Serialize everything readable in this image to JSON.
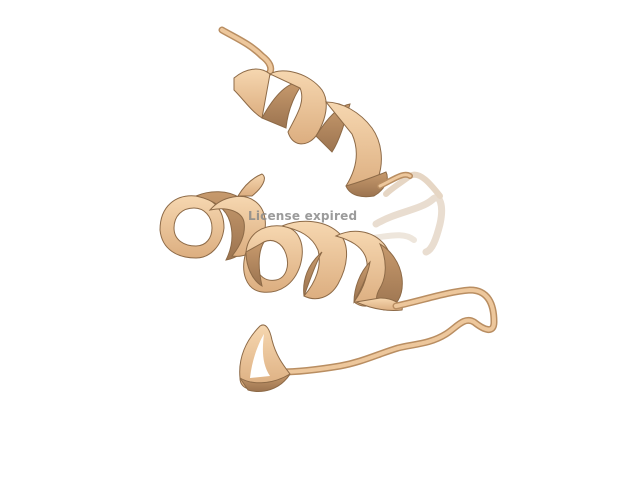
{
  "viewer": {
    "watermark": "License expired"
  },
  "colors": {
    "background": "#ffffff",
    "ribbon_light": "#f1ccA0",
    "ribbon_mid": "#e3b585",
    "ribbon_dark": "#b98e62",
    "ribbon_outline": "#8d6a47",
    "ribbon_faded": "#eee4da",
    "watermark": "#8a8a8a"
  }
}
